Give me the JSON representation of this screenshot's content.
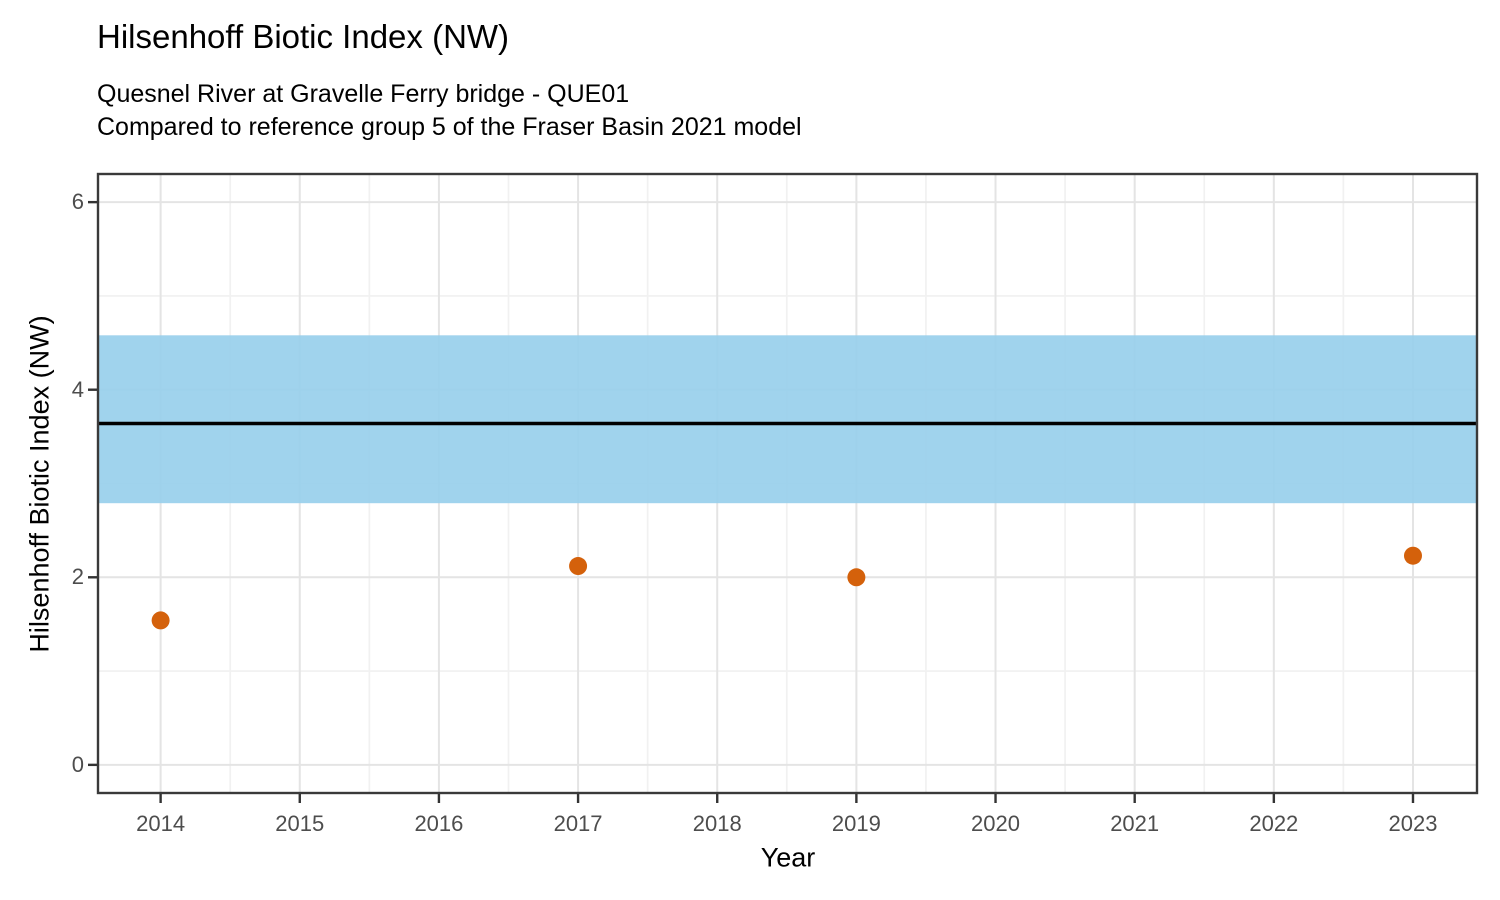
{
  "chart": {
    "title": "Hilsenhoff Biotic Index (NW)",
    "subtitle_line1": "Quesnel River at Gravelle Ferry bridge - QUE01",
    "subtitle_line2": "Compared to reference group 5 of the Fraser Basin 2021 model",
    "xlabel": "Year",
    "ylabel": "Hilsenhoff Biotic Index (NW)"
  },
  "chart_data": {
    "type": "scatter",
    "title": "Hilsenhoff Biotic Index (NW)",
    "subtitle": [
      "Quesnel River at Gravelle Ferry bridge - QUE01",
      "Compared to reference group 5 of the Fraser Basin 2021 model"
    ],
    "xlabel": "Year",
    "ylabel": "Hilsenhoff Biotic Index (NW)",
    "x": [
      2014,
      2017,
      2019,
      2023
    ],
    "y": [
      1.54,
      2.12,
      2.0,
      2.23
    ],
    "x_ticks": [
      2014,
      2015,
      2016,
      2017,
      2018,
      2019,
      2020,
      2021,
      2022,
      2023
    ],
    "y_ticks": [
      0,
      2,
      4,
      6
    ],
    "x_minor_gridlines": [
      2014.5,
      2015.5,
      2016.5,
      2017.5,
      2018.5,
      2019.5,
      2020.5,
      2021.5,
      2022.5
    ],
    "y_minor_gridlines": [
      1,
      3,
      5
    ],
    "xlim": [
      2013.55,
      2023.46
    ],
    "ylim": [
      -0.3,
      6.3
    ],
    "reference_band": {
      "lower": 2.79,
      "upper": 4.58,
      "color": "#98CFEC"
    },
    "reference_line": {
      "value": 3.64,
      "color": "#000000"
    },
    "point_color": "#D4610B",
    "grid": "major and minor horizontal+vertical gridlines, light gray on white, dark panel border",
    "legend": "none"
  },
  "style": {
    "band_color": "#98CFEC",
    "point_color": "#D4610B",
    "reference_line_color": "#000000",
    "major_grid_color": "#E4E4E4",
    "minor_grid_color": "#F1F1F1",
    "panel_border_color": "#3A3A3A",
    "tick_label_color": "#4D4D4D"
  }
}
